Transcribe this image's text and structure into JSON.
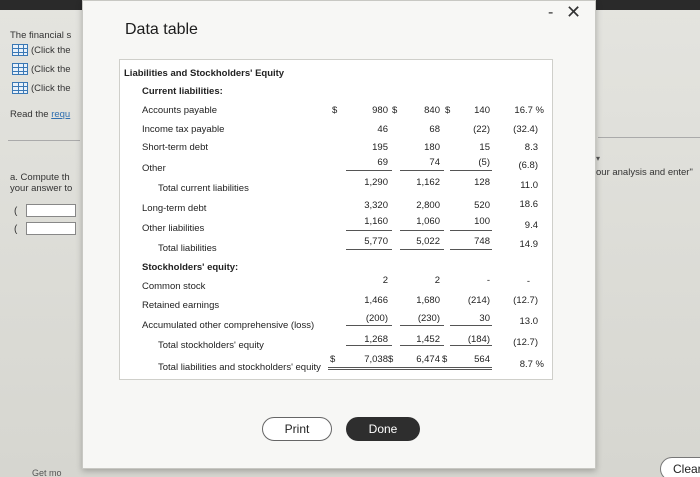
{
  "background": {
    "left_texts": [
      "The financial s",
      "(Click the",
      "(Click the",
      "(Click the"
    ],
    "read_prefix": "Read the ",
    "read_link": "requ",
    "compute_line1": "a. Compute th",
    "compute_line2": "your answer to",
    "paren": "(",
    "right_text": "our analysis and enter\"",
    "caret": "▾",
    "clear_label": "Clear",
    "bottom_text": "Get mo"
  },
  "modal": {
    "title": "Data table",
    "minimize_glyph": "-",
    "close_glyph": "✕",
    "section_title": "Liabilities and Stockholders' Equity",
    "current_liabilities_label": "Current liabilities:",
    "rows": [
      {
        "label": "Accounts payable",
        "c1_prefix": "$",
        "c1": "980",
        "c2_prefix": "$",
        "c2": "840",
        "c3_prefix": "$",
        "c3": "140",
        "c4": "16.7 %"
      },
      {
        "label": "Income tax payable",
        "c1": "46",
        "c2": "68",
        "c3": "(22)",
        "c4": "(32.4)"
      },
      {
        "label": "Short-term debt",
        "c1": "195",
        "c2": "180",
        "c3": "15",
        "c4": "8.3"
      },
      {
        "label": "Other",
        "c1": "69",
        "c2": "74",
        "c3": "(5)",
        "c4": "(6.8)"
      },
      {
        "label": "Total current liabilities",
        "c1": "1,290",
        "c2": "1,162",
        "c3": "128",
        "c4": "11.0"
      },
      {
        "label": "Long-term debt",
        "c1": "3,320",
        "c2": "2,800",
        "c3": "520",
        "c4": "18.6"
      },
      {
        "label": "Other liabilities",
        "c1": "1,160",
        "c2": "1,060",
        "c3": "100",
        "c4": "9.4"
      },
      {
        "label": "Total liabilities",
        "c1": "5,770",
        "c2": "5,022",
        "c3": "748",
        "c4": "14.9"
      }
    ],
    "equity_label": "Stockholders' equity:",
    "equity_rows": [
      {
        "label": "Common stock",
        "c1": "2",
        "c2": "2",
        "c3": "-",
        "c4": "-"
      },
      {
        "label": "Retained earnings",
        "c1": "1,466",
        "c2": "1,680",
        "c3": "(214)",
        "c4": "(12.7)"
      },
      {
        "label": "Accumulated other comprehensive (loss)",
        "c1": "(200)",
        "c2": "(230)",
        "c3": "30",
        "c4": "13.0"
      },
      {
        "label": "Total stockholders' equity",
        "c1": "1,268",
        "c2": "1,452",
        "c3": "(184)",
        "c4": "(12.7)"
      },
      {
        "label": "Total liabilities and stockholders' equity",
        "c1_prefix": "$",
        "c1": "7,038",
        "c2_prefix": "$",
        "c2": "6,474",
        "c3_prefix": "$",
        "c3": "564",
        "c4": "8.7 %"
      }
    ],
    "print_label": "Print",
    "done_label": "Done"
  }
}
